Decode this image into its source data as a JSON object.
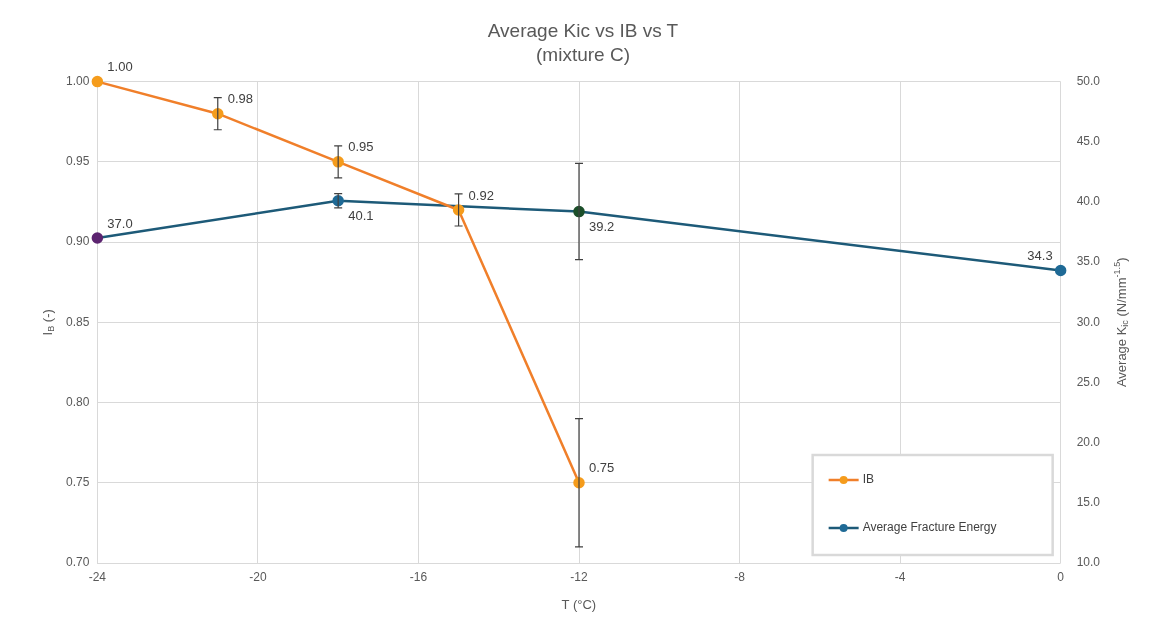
{
  "chart_data": {
    "type": "line",
    "title": "Average Kic vs IB vs T",
    "subtitle": "(mixture C)",
    "xlabel": "T (°C)",
    "ylabel": "I$_{B}$ (-)",
    "y2label": "Average K$_{ic}$ (N/mm$^{-1.5}$)",
    "xlim": [
      -24,
      0
    ],
    "xticks": [
      -24,
      -20,
      -16,
      -12,
      -8,
      -4,
      0
    ],
    "ylim": [
      0.7,
      1.0
    ],
    "yticks": [
      {
        "value": 0.7,
        "label": "0.70"
      },
      {
        "value": 0.75,
        "label": "0.75"
      },
      {
        "value": 0.8,
        "label": "0.80"
      },
      {
        "value": 0.85,
        "label": "0.85"
      },
      {
        "value": 0.9,
        "label": "0.90"
      },
      {
        "value": 0.95,
        "label": "0.95"
      },
      {
        "value": 1.0,
        "label": "1.00"
      }
    ],
    "y2lim": [
      10,
      50
    ],
    "y2ticks": [
      {
        "value": 10,
        "label": "10.0"
      },
      {
        "value": 15,
        "label": "15.0"
      },
      {
        "value": 20,
        "label": "20.0"
      },
      {
        "value": 25,
        "label": "25.0"
      },
      {
        "value": 30,
        "label": "30.0"
      },
      {
        "value": 35,
        "label": "35.0"
      },
      {
        "value": 40,
        "label": "40.0"
      },
      {
        "value": 45,
        "label": "45.0"
      },
      {
        "value": 50,
        "label": "50.0"
      }
    ],
    "grid": true,
    "legend": "bottom right",
    "marker": "circle",
    "line_style": "solid",
    "series": [
      {
        "name": "IB",
        "color": "#f07f2a",
        "colors": [
          "#f59c1c",
          "#f59c1c",
          "#f59c1c",
          "#f59c1c",
          "#f59c1c"
        ],
        "x": [
          -24,
          -21,
          -18,
          -15,
          -12
        ],
        "values": [
          1.0,
          0.98,
          0.95,
          0.92,
          0.75
        ],
        "errors": [
          null,
          0.01,
          0.01,
          0.01,
          0.04
        ],
        "value_labels": [
          "1.00",
          "0.98",
          "0.95",
          "0.92",
          "0.75"
        ]
      },
      {
        "name": "Average Fracture Energy",
        "axis": "y2",
        "color": "#1d5a78",
        "colors": [
          "#5c2470",
          "#1f6a96",
          "#1c4f2a",
          "#1f6a96"
        ],
        "x": [
          -24,
          -18,
          -12,
          0
        ],
        "values": [
          37.0,
          40.1,
          39.2,
          34.3
        ],
        "errors": [
          null,
          0.6,
          4,
          null
        ],
        "value_labels": [
          "37.0",
          "40.1",
          "39.2",
          "34.3"
        ]
      }
    ]
  }
}
